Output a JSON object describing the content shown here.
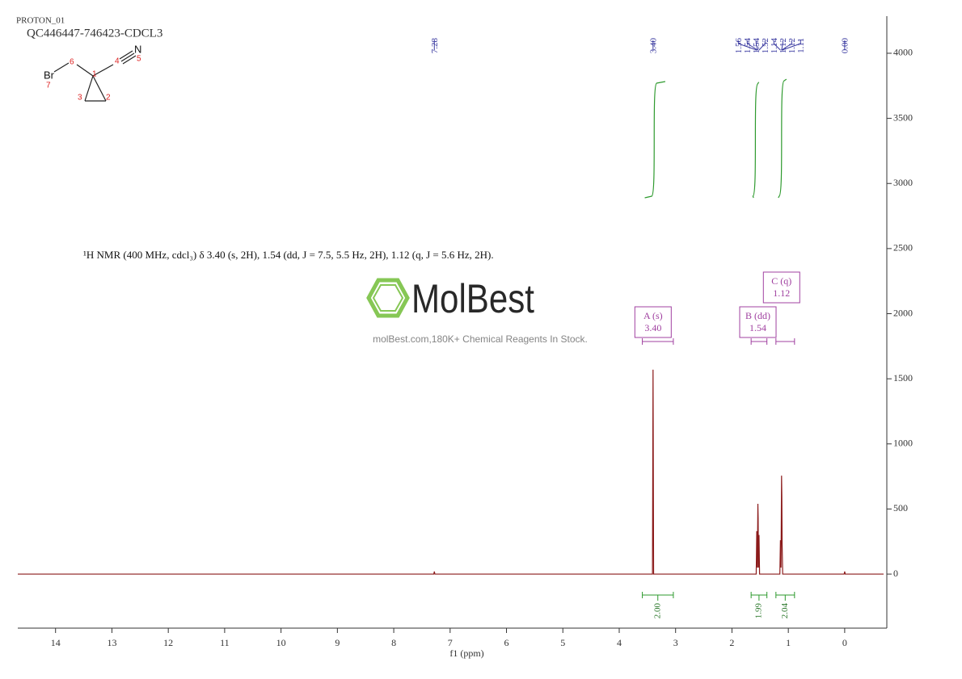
{
  "chart_data": {
    "type": "line",
    "title": "PROTON_01",
    "subtitle": "QC446447-746423-CDCL3",
    "description": "¹H NMR (400 MHz, cdcl₃) δ 3.40 (s, 2H), 1.54 (dd, J = 7.5, 5.5 Hz, 2H), 1.12 (q, J = 5.6 Hz, 2H).",
    "x_label": "f1 (ppm)",
    "color": "#8b1a1a",
    "x": [
      14.67,
      7.29,
      7.28,
      7.27,
      3.41,
      3.4,
      3.39,
      1.57,
      1.56,
      1.55,
      1.54,
      1.535,
      1.53,
      1.52,
      1.51,
      1.15,
      1.14,
      1.13,
      1.12,
      1.115,
      1.11,
      1.1,
      0.01,
      0.0,
      -0.01,
      -0.69
    ],
    "values": [
      0,
      0,
      20,
      0,
      0,
      1570,
      0,
      0,
      330,
      50,
      540,
      430,
      50,
      300,
      0,
      0,
      260,
      50,
      756,
      600,
      230,
      0,
      0,
      20,
      0,
      0
    ],
    "xlim": [
      14.67,
      -0.69
    ],
    "ylim": [
      -415,
      4285
    ],
    "xticks": [
      14,
      13,
      12,
      11,
      10,
      9,
      8,
      7,
      6,
      5,
      4,
      3,
      2,
      1,
      0
    ],
    "yticks": [
      0,
      500,
      1000,
      1500,
      2000,
      2500,
      3000,
      3500,
      4000
    ],
    "peak_picks": [
      7.28,
      {
        "value": 3.4,
        "label": "3.40"
      },
      1.56,
      1.54,
      1.54,
      1.52,
      1.14,
      1.12,
      1.12,
      1.11,
      {
        "value": 0,
        "label": "0.00"
      }
    ],
    "multiplets": [
      {
        "name": "A (s)",
        "shift": {
          "value": 3.4,
          "label": "3.40"
        },
        "range": [
          3.59,
          3.04
        ]
      },
      {
        "name": "B (dd)",
        "shift": 1.54,
        "range": [
          1.66,
          1.38
        ]
      },
      {
        "name": "C (q)",
        "shift": 1.12,
        "range": [
          1.22,
          0.89
        ]
      }
    ],
    "integrals": [
      {
        "range": [
          3.59,
          3.04
        ],
        "value": {
          "value": 2,
          "label": "2.00"
        }
      },
      {
        "range": [
          1.66,
          1.38
        ],
        "value": 1.99
      },
      {
        "range": [
          1.22,
          0.89
        ],
        "value": 2.04
      }
    ]
  },
  "structure": {
    "atoms": [
      {
        "symbol": "Br",
        "number": 7
      },
      {
        "number": 6
      },
      {
        "number": 1
      },
      {
        "number": 4
      },
      {
        "symbol": "N",
        "number": 5
      },
      {
        "number": 3
      },
      {
        "number": 2
      }
    ]
  },
  "watermark": {
    "brand": "MolBest",
    "tagline": "molBest.com,180K+ Chemical Reagents In Stock."
  }
}
